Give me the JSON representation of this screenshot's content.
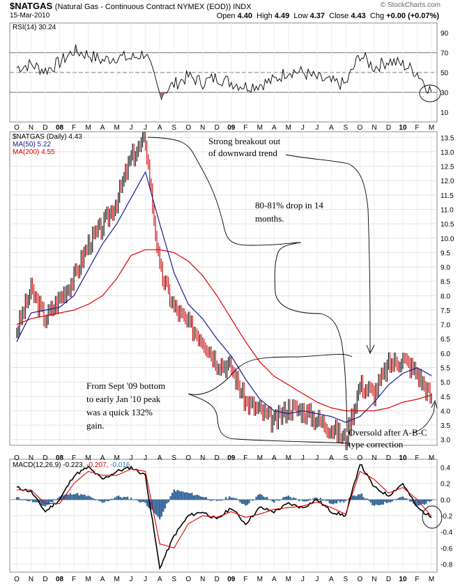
{
  "header": {
    "symbol": "$NATGAS",
    "description": "(Natural Gas - Continuous Contract NYMEX (EOD)) INDX",
    "date": "15-Mar-2010",
    "open_label": "Open",
    "open": "4.40",
    "high_label": "High",
    "high": "4.49",
    "low_label": "Low",
    "low": "4.37",
    "close_label": "Close",
    "close": "4.43",
    "chg_label": "Chg",
    "chg": "+0.00 (+0.07%)",
    "credit": "© StockCharts.com"
  },
  "rsi_panel": {
    "label": "RSI(14) 30.24",
    "ticks": [
      "90",
      "70",
      "50",
      "30",
      "10"
    ]
  },
  "price_panel": {
    "legend_main": "$NATGAS (Daily) 4.43",
    "legend_ma50": "MA(50) 5.22",
    "legend_ma200": "MA(200) 4.55",
    "ticks": [
      "13.5",
      "13.0",
      "12.5",
      "12.0",
      "11.5",
      "11.0",
      "10.5",
      "10.0",
      "9.5",
      "9.0",
      "8.5",
      "8.0",
      "7.5",
      "7.0",
      "6.5",
      "6.0",
      "5.5",
      "5.0",
      "4.5",
      "4.0",
      "3.5",
      "3.0"
    ]
  },
  "macd_panel": {
    "label_prefix": "MACD(12,26,9)",
    "macd": "-0.223,",
    "signal": "-0.207,",
    "hist": "-0.016",
    "ticks": [
      "0.4",
      "0.2",
      "0.0",
      "-0.2",
      "-0.4",
      "-0.6",
      "-0.8"
    ]
  },
  "x_axis": [
    "O",
    "N",
    "D",
    "08",
    "F",
    "M",
    "A",
    "M",
    "J",
    "J",
    "A",
    "S",
    "O",
    "N",
    "D",
    "09",
    "F",
    "M",
    "A",
    "M",
    "J",
    "J",
    "A",
    "S",
    "O",
    "N",
    "D",
    "10",
    "F",
    "M"
  ],
  "annotations": {
    "breakout_1": "Strong breakout out",
    "breakout_2": "of downward trend",
    "drop_1": "80-81% drop in 14",
    "drop_2": "months.",
    "gain_1": "From Sept '09 bottom",
    "gain_2": "to early Jan '10 peak",
    "gain_3": "was a quick 132%",
    "gain_4": "gain.",
    "oversold_1": "Oversold after A-B-C",
    "oversold_2": "type correction"
  },
  "colors": {
    "price": "#000000",
    "price_down": "#cc0000",
    "ma50": "#1a1a99",
    "ma200": "#dd0000",
    "macd_hist": "#336699",
    "macd_line": "#000000",
    "signal_line": "#dd0000",
    "rsi_overbought_fill": "#558855",
    "rsi_oversold_fill": "#996666"
  },
  "chart_data": [
    {
      "type": "line",
      "title": "RSI(14)",
      "ylim": [
        0,
        100
      ],
      "reference_lines": [
        70,
        50,
        30
      ],
      "x": [
        "2007-10",
        "2007-11",
        "2007-12",
        "2008-01",
        "2008-02",
        "2008-03",
        "2008-04",
        "2008-05",
        "2008-06",
        "2008-07",
        "2008-08",
        "2008-09",
        "2008-10",
        "2008-11",
        "2008-12",
        "2009-01",
        "2009-02",
        "2009-03",
        "2009-04",
        "2009-05",
        "2009-06",
        "2009-07",
        "2009-08",
        "2009-09",
        "2009-10",
        "2009-11",
        "2009-12",
        "2010-01",
        "2010-02",
        "2010-03"
      ],
      "series": [
        {
          "name": "RSI(14)",
          "values": [
            55,
            58,
            52,
            60,
            72,
            68,
            62,
            66,
            64,
            70,
            28,
            38,
            46,
            40,
            45,
            40,
            36,
            38,
            42,
            52,
            50,
            44,
            40,
            38,
            68,
            55,
            62,
            58,
            50,
            30
          ]
        }
      ]
    },
    {
      "type": "line",
      "title": "$NATGAS (Daily) 4.43",
      "ylim": [
        2.8,
        13.7
      ],
      "x": [
        "2007-10",
        "2007-11",
        "2007-12",
        "2008-01",
        "2008-02",
        "2008-03",
        "2008-04",
        "2008-05",
        "2008-06",
        "2008-07",
        "2008-08",
        "2008-09",
        "2008-10",
        "2008-11",
        "2008-12",
        "2009-01",
        "2009-02",
        "2009-03",
        "2009-04",
        "2009-05",
        "2009-06",
        "2009-07",
        "2009-08",
        "2009-09",
        "2009-10",
        "2009-11",
        "2009-12",
        "2010-01",
        "2010-02",
        "2010-03"
      ],
      "series": [
        {
          "name": "$NATGAS",
          "values": [
            6.8,
            8.2,
            7.2,
            7.9,
            8.6,
            9.8,
            10.4,
            11.3,
            12.8,
            13.4,
            8.9,
            7.6,
            7.0,
            6.5,
            5.7,
            5.5,
            4.3,
            4.0,
            3.6,
            4.1,
            4.0,
            3.7,
            3.4,
            3.0,
            4.9,
            4.6,
            5.6,
            5.8,
            5.3,
            4.43
          ]
        },
        {
          "name": "MA(50)",
          "values": [
            6.4,
            7.4,
            7.5,
            7.6,
            8.0,
            8.9,
            9.8,
            10.5,
            11.4,
            12.3,
            10.5,
            8.8,
            7.7,
            7.2,
            6.5,
            5.9,
            5.1,
            4.4,
            4.0,
            3.9,
            4.0,
            3.9,
            3.8,
            3.6,
            3.8,
            4.3,
            4.9,
            5.3,
            5.5,
            5.22
          ]
        },
        {
          "name": "MA(200)",
          "values": [
            7.0,
            7.2,
            7.3,
            7.4,
            7.5,
            7.7,
            8.0,
            8.6,
            9.4,
            9.6,
            9.6,
            9.5,
            9.2,
            8.7,
            8.0,
            7.2,
            6.4,
            5.7,
            5.2,
            4.9,
            4.6,
            4.3,
            4.1,
            4.0,
            4.0,
            4.0,
            4.1,
            4.3,
            4.4,
            4.55
          ]
        }
      ]
    },
    {
      "type": "line",
      "title": "MACD(12,26,9)",
      "ylim": [
        -0.9,
        0.5
      ],
      "x": [
        "2007-10",
        "2007-11",
        "2007-12",
        "2008-01",
        "2008-02",
        "2008-03",
        "2008-04",
        "2008-05",
        "2008-06",
        "2008-07",
        "2008-08",
        "2008-09",
        "2008-10",
        "2008-11",
        "2008-12",
        "2009-01",
        "2009-02",
        "2009-03",
        "2009-04",
        "2009-05",
        "2009-06",
        "2009-07",
        "2009-08",
        "2009-09",
        "2009-10",
        "2009-11",
        "2009-12",
        "2010-01",
        "2010-02",
        "2010-03"
      ],
      "series": [
        {
          "name": "MACD",
          "values": [
            0.15,
            0.1,
            -0.15,
            0.0,
            0.3,
            0.4,
            0.25,
            0.35,
            0.4,
            0.3,
            -0.85,
            -0.45,
            -0.2,
            -0.15,
            -0.25,
            -0.1,
            -0.3,
            -0.1,
            -0.15,
            -0.05,
            -0.1,
            0.0,
            -0.15,
            -0.2,
            0.45,
            0.15,
            0.05,
            0.2,
            -0.1,
            -0.223
          ]
        },
        {
          "name": "Signal",
          "values": [
            0.12,
            0.12,
            -0.05,
            -0.05,
            0.2,
            0.35,
            0.3,
            0.3,
            0.38,
            0.35,
            -0.55,
            -0.6,
            -0.3,
            -0.2,
            -0.22,
            -0.15,
            -0.22,
            -0.18,
            -0.12,
            -0.1,
            -0.08,
            -0.03,
            -0.1,
            -0.18,
            0.35,
            0.25,
            0.08,
            0.15,
            0.0,
            -0.207
          ]
        }
      ]
    }
  ]
}
